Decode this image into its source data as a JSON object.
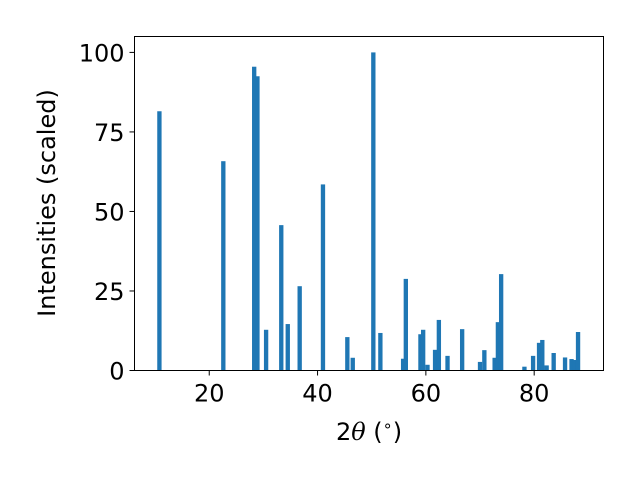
{
  "chart_data": {
    "type": "bar",
    "xlabel_parts": {
      "pre": "2",
      "symbol": "θ",
      "post": " (",
      "unit": "∘",
      "close": ")"
    },
    "ylabel": "Intensities (scaled)",
    "xlim": [
      6.2,
      92.8
    ],
    "ylim": [
      0,
      105.0
    ],
    "x_ticks": [
      20,
      40,
      60,
      80
    ],
    "y_ticks": [
      0,
      25,
      50,
      75,
      100
    ],
    "grid": false,
    "bar_color": "#1f77b4",
    "bar_width": 0.8,
    "x": [
      10.8,
      22.6,
      28.3,
      28.9,
      30.5,
      33.3,
      34.5,
      36.7,
      41.0,
      45.5,
      46.5,
      50.3,
      51.6,
      55.8,
      56.3,
      59.0,
      59.5,
      60.3,
      61.7,
      62.4,
      64.0,
      66.7,
      70.0,
      70.8,
      72.7,
      73.3,
      73.9,
      78.2,
      79.8,
      80.9,
      81.5,
      82.3,
      83.6,
      85.7,
      86.9,
      87.4,
      88.1
    ],
    "values": [
      81.5,
      65.8,
      95.5,
      92.5,
      12.8,
      45.7,
      14.6,
      26.5,
      58.5,
      10.5,
      4.0,
      100,
      11.8,
      3.7,
      28.8,
      11.4,
      12.8,
      1.8,
      6.5,
      15.9,
      4.6,
      13.0,
      2.7,
      6.4,
      4.0,
      15.2,
      30.3,
      1.2,
      4.6,
      8.7,
      9.6,
      1.6,
      5.5,
      4.1,
      3.6,
      3.3,
      12.1
    ]
  }
}
